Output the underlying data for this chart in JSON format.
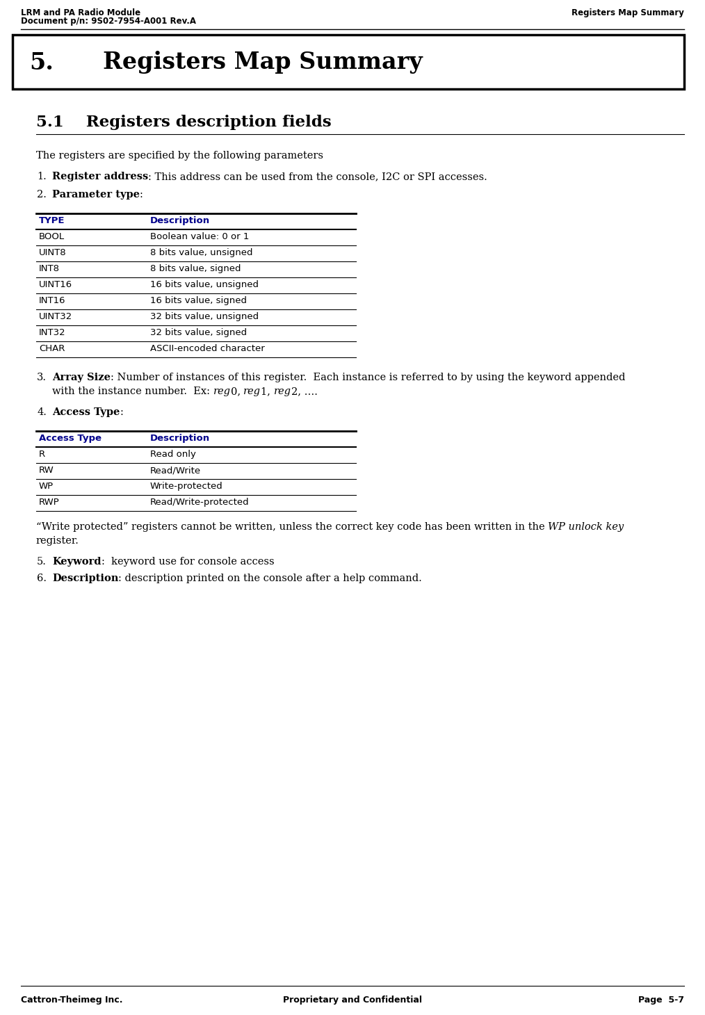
{
  "header_left_line1": "LRM and PA Radio Module",
  "header_left_line2": "Document p/n: 9S02-7954-A001 Rev.A",
  "header_right": "Registers Map Summary",
  "chapter_number": "5.",
  "chapter_title": "Registers Map Summary",
  "section_number": "5.1",
  "section_title": "Registers description fields",
  "intro_text": "The registers are specified by the following parameters",
  "item1_bold": "Register address",
  "item1_text": ": This address can be used from the console, I2C or SPI accesses.",
  "item2_bold": "Parameter type",
  "item2_text": ":",
  "type_table_headers": [
    "TYPE",
    "Description"
  ],
  "type_table_rows": [
    [
      "BOOL",
      "Boolean value: 0 or 1"
    ],
    [
      "UINT8",
      "8 bits value, unsigned"
    ],
    [
      "INT8",
      "8 bits value, signed"
    ],
    [
      "UINT16",
      "16 bits value, unsigned"
    ],
    [
      "INT16",
      "16 bits value, signed"
    ],
    [
      "UINT32",
      "32 bits value, unsigned"
    ],
    [
      "INT32",
      "32 bits value, signed"
    ],
    [
      "CHAR",
      "ASCII-encoded character"
    ]
  ],
  "item3_bold": "Array Size",
  "item3_line1_after": ": Number of instances of this register.  Each instance is referred to by using the keyword appended",
  "item3_line2_pre": "with the instance number.  Ex: ",
  "item3_line2_post": "0, ",
  "item3_line2_post2": "1, ",
  "item3_line2_post3": "2, ….",
  "item4_bold": "Access Type",
  "item4_text": ":",
  "access_table_headers": [
    "Access Type",
    "Description"
  ],
  "access_table_rows": [
    [
      "R",
      "Read only"
    ],
    [
      "RW",
      "Read/Write"
    ],
    [
      "WP",
      "Write-protected"
    ],
    [
      "RWP",
      "Read/Write-protected"
    ]
  ],
  "wp_line1": "“Write protected” registers cannot be written, unless the correct key code has been written in the ",
  "wp_italic": "WP unlock key",
  "wp_line2": "register.",
  "item5_bold": "Keyword",
  "item5_text": ":  keyword use for console access",
  "item6_bold": "Description",
  "item6_text": ": description printed on the console after a help command.",
  "footer_left": "Cattron-Theimeg Inc.",
  "footer_center": "Proprietary and Confidential",
  "footer_right": "Page  5-7",
  "bg_color": "#ffffff",
  "text_color": "#000000",
  "table_header_color": "#00008B"
}
